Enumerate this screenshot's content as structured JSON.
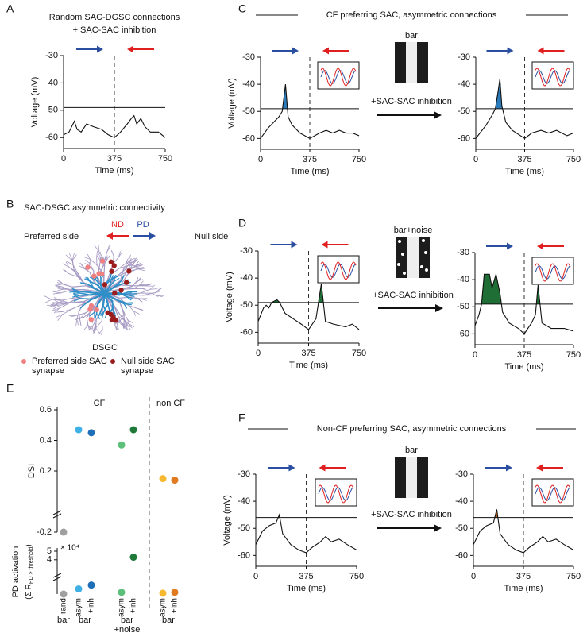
{
  "panel_labels": [
    "A",
    "B",
    "C",
    "D",
    "E",
    "F"
  ],
  "diagram": {
    "title": "SAC-DSGC asymmetric connectivity",
    "nd": "ND",
    "pd": "PD",
    "left_side": "Preferred side",
    "right_side": "Null side",
    "cell": "DSGC",
    "legend": [
      {
        "lines": [
          "Preferred side SAC",
          "synapse"
        ],
        "color": "#f08080"
      },
      {
        "lines": [
          "Null side SAC",
          "synapse"
        ],
        "color": "#9b1c1c"
      }
    ]
  },
  "sections": [
    {
      "title": "CF preferring SAC, asymmetric connections",
      "stimulus": "bar",
      "transition": "+SAC-SAC inhibition"
    },
    {
      "stimulus": "bar+noise",
      "transition": "+SAC-SAC inhibition"
    },
    {
      "title": "Non-CF preferring SAC, asymmetric connections",
      "stimulus": "bar",
      "transition": "+SAC-SAC inhibition"
    }
  ],
  "chart_data": [
    {
      "type": "line",
      "title_lines": [
        "Random SAC-DGSC connections",
        "+ SAC-SAC inhibition"
      ],
      "ylabel": "Voltage (mV)",
      "xlabel": "Time (ms)",
      "xlim": [
        0,
        750
      ],
      "xticks": [
        0,
        375,
        750
      ],
      "ylim": [
        -64,
        -30
      ],
      "yticks": [
        -30,
        -40,
        -50,
        -60
      ],
      "threshold": -49,
      "marker_line": 375,
      "color": "#111111",
      "x": [
        0,
        40,
        80,
        100,
        130,
        170,
        220,
        280,
        330,
        375,
        420,
        470,
        500,
        520,
        540,
        570,
        600,
        640,
        700,
        750
      ],
      "values": [
        -59,
        -58,
        -54,
        -57,
        -58,
        -55,
        -56,
        -57,
        -59,
        -60,
        -58,
        -55,
        -53,
        -52,
        -55,
        -53,
        -56,
        -58,
        -58,
        -60
      ]
    },
    {
      "type": "line",
      "ylabel": "Voltage (mV)",
      "xlabel": "Time (ms)",
      "xlim": [
        0,
        750
      ],
      "xticks": [
        0,
        375,
        750
      ],
      "ylim": [
        -64,
        -30
      ],
      "yticks": [
        -30,
        -40,
        -50,
        -60
      ],
      "threshold": -49,
      "marker_line": 375,
      "color": "#111111",
      "fill_color": "#2b7bba",
      "x": [
        0,
        60,
        100,
        140,
        165,
        190,
        210,
        240,
        300,
        375,
        450,
        500,
        550,
        600,
        650,
        700,
        750
      ],
      "values": [
        -60,
        -56,
        -54,
        -52,
        -50,
        -40,
        -52,
        -55,
        -58,
        -60,
        -58,
        -57,
        -58,
        -57,
        -58,
        -58,
        -59
      ]
    },
    {
      "type": "line",
      "xlabel": "Time (ms)",
      "xlim": [
        0,
        750
      ],
      "xticks": [
        0,
        375,
        750
      ],
      "ylim": [
        -64,
        -30
      ],
      "yticks": [
        -30,
        -40,
        -50,
        -60
      ],
      "threshold": -49,
      "marker_line": 375,
      "color": "#111111",
      "fill_color": "#2b7bba",
      "x": [
        0,
        80,
        130,
        150,
        170,
        185,
        200,
        230,
        280,
        375,
        430,
        500,
        560,
        620,
        700,
        750
      ],
      "values": [
        -60,
        -55,
        -51,
        -49,
        -43,
        -38,
        -48,
        -54,
        -57,
        -60,
        -58,
        -57,
        -58,
        -57,
        -59,
        -58
      ]
    },
    {
      "type": "line",
      "ylabel": "Voltage (mV)",
      "xlabel": "Time (ms)",
      "xlim": [
        0,
        750
      ],
      "xticks": [
        0,
        375,
        750
      ],
      "ylim": [
        -64,
        -30
      ],
      "yticks": [
        -30,
        -40,
        -50,
        -60
      ],
      "threshold": -49,
      "marker_line": 375,
      "color": "#111111",
      "fill_color": "#1f6e35",
      "x": [
        0,
        40,
        60,
        80,
        100,
        140,
        160,
        200,
        260,
        320,
        375,
        430,
        470,
        500,
        560,
        650,
        700,
        750
      ],
      "values": [
        -56,
        -51,
        -50,
        -51,
        -49,
        -48,
        -49,
        -53,
        -55,
        -57,
        -59,
        -55,
        -42,
        -56,
        -57,
        -58,
        -57,
        -59
      ]
    },
    {
      "type": "line",
      "xlabel": "Time (ms)",
      "xlim": [
        0,
        750
      ],
      "xticks": [
        0,
        375,
        750
      ],
      "ylim": [
        -64,
        -30
      ],
      "yticks": [
        -30,
        -40,
        -50,
        -60
      ],
      "threshold": -49,
      "marker_line": 375,
      "color": "#111111",
      "fill_color": "#1f6e35",
      "x": [
        0,
        30,
        50,
        70,
        110,
        130,
        160,
        190,
        210,
        260,
        330,
        375,
        430,
        460,
        480,
        510,
        580,
        680,
        750
      ],
      "values": [
        -57,
        -53,
        -49,
        -38,
        -38,
        -43,
        -38,
        -45,
        -52,
        -56,
        -58,
        -60,
        -56,
        -53,
        -42,
        -56,
        -58,
        -58,
        -59
      ]
    },
    {
      "type": "line",
      "ylabel": "Voltage (mV)",
      "xlabel": "Time (ms)",
      "xlim": [
        0,
        750
      ],
      "xticks": [
        0,
        375,
        750
      ],
      "ylim": [
        -64,
        -30
      ],
      "yticks": [
        -30,
        -40,
        -50,
        -60
      ],
      "threshold": -46,
      "marker_line": 375,
      "color": "#111111",
      "fill_color": "#c0601a",
      "x": [
        0,
        50,
        100,
        150,
        175,
        200,
        260,
        320,
        375,
        420,
        480,
        520,
        560,
        620,
        680,
        750
      ],
      "values": [
        -56,
        -51,
        -49,
        -48,
        -45,
        -52,
        -56,
        -58,
        -59,
        -57,
        -55,
        -53,
        -55,
        -54,
        -56,
        -58
      ]
    },
    {
      "type": "line",
      "xlabel": "Time (ms)",
      "xlim": [
        0,
        750
      ],
      "xticks": [
        0,
        375,
        750
      ],
      "ylim": [
        -64,
        -30
      ],
      "yticks": [
        -30,
        -40,
        -50,
        -60
      ],
      "threshold": -46,
      "marker_line": 375,
      "color": "#111111",
      "fill_color": "#c0601a",
      "x": [
        0,
        50,
        100,
        150,
        175,
        200,
        260,
        320,
        375,
        420,
        480,
        520,
        560,
        620,
        680,
        750
      ],
      "values": [
        -56,
        -51,
        -49,
        -48,
        -43,
        -52,
        -56,
        -58,
        -59,
        -57,
        -55,
        -53,
        -55,
        -54,
        -56,
        -58
      ]
    },
    {
      "type": "dot",
      "ylabel": "DSI",
      "annotations": [
        "CF",
        "non CF"
      ],
      "ylim": [
        -0.2,
        0.6
      ],
      "yticks": [
        -0.2,
        0.2,
        0.4,
        0.6
      ],
      "values": [
        -0.2,
        0.47,
        0.45,
        0.37,
        0.47,
        0.15,
        0.14
      ],
      "colors": [
        "#a0a0a0",
        "#3fb0e6",
        "#1f6fb8",
        "#5cbf7a",
        "#1f7a3a",
        "#f5b82e",
        "#e07b22"
      ]
    },
    {
      "type": "dot",
      "ylabel_lines": [
        "PD activation"
      ],
      "ylabel_parts": [
        "(Σ R",
        "PD > threshold",
        ")"
      ],
      "scale_label": "× 10⁴",
      "ylim": [
        0,
        5
      ],
      "yticks": [
        4,
        5
      ],
      "categories": [
        "rand",
        "asym",
        "+inh",
        "asym",
        "+inh",
        "asym",
        "+inh"
      ],
      "groups": [
        {
          "lines": [
            "bar"
          ]
        },
        {
          "lines": [
            "bar"
          ]
        },
        {
          "lines": [
            "bar",
            "+noise"
          ]
        },
        {
          "lines": [
            "bar"
          ]
        }
      ],
      "values": [
        0,
        0.6,
        1.05,
        0.2,
        4.3,
        0.1,
        0.2
      ],
      "colors": [
        "#a0a0a0",
        "#3fb0e6",
        "#1f6fb8",
        "#5cbf7a",
        "#1f7a3a",
        "#f5b82e",
        "#e07b22"
      ]
    }
  ]
}
